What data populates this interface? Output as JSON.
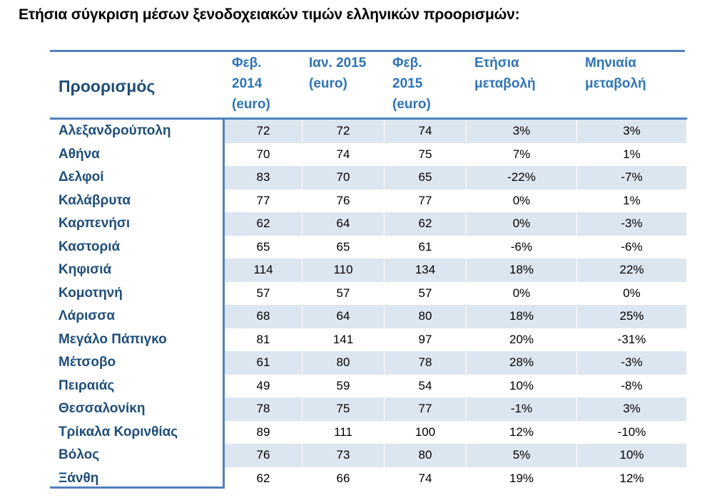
{
  "title": "Ετήσια σύγκριση μέσων ξενοδοχειακών τιμών ελληνικών προορισμών:",
  "table": {
    "header": {
      "destination": "Προορισμός",
      "feb2014": [
        "Φεβ.",
        "2014",
        "(euro)"
      ],
      "jan2015": [
        "Ιαν. 2015",
        "(euro)"
      ],
      "feb2015": [
        "Φεβ.",
        "2015",
        "(euro)"
      ],
      "annual": [
        "Ετήσια",
        "μεταβολή"
      ],
      "monthly": [
        "Μηνιαία",
        "μεταβολή"
      ]
    },
    "rows": [
      {
        "name": "Αλεξανδρούπολη",
        "feb2014": "72",
        "jan2015": "72",
        "feb2015": "74",
        "annual": "3%",
        "monthly": "3%"
      },
      {
        "name": "Αθήνα",
        "feb2014": "70",
        "jan2015": "74",
        "feb2015": "75",
        "annual": "7%",
        "monthly": "1%"
      },
      {
        "name": "Δελφοί",
        "feb2014": "83",
        "jan2015": "70",
        "feb2015": "65",
        "annual": "-22%",
        "monthly": "-7%"
      },
      {
        "name": "Καλάβρυτα",
        "feb2014": "77",
        "jan2015": "76",
        "feb2015": "77",
        "annual": "0%",
        "monthly": "1%"
      },
      {
        "name": "Καρπενήσι",
        "feb2014": "62",
        "jan2015": "64",
        "feb2015": "62",
        "annual": "0%",
        "monthly": "-3%"
      },
      {
        "name": "Καστοριά",
        "feb2014": "65",
        "jan2015": "65",
        "feb2015": "61",
        "annual": "-6%",
        "monthly": "-6%"
      },
      {
        "name": "Κηφισιά",
        "feb2014": "114",
        "jan2015": "110",
        "feb2015": "134",
        "annual": "18%",
        "monthly": "22%"
      },
      {
        "name": "Κομοτηνή",
        "feb2014": "57",
        "jan2015": "57",
        "feb2015": "57",
        "annual": "0%",
        "monthly": "0%"
      },
      {
        "name": "Λάρισσα",
        "feb2014": "68",
        "jan2015": "64",
        "feb2015": "80",
        "annual": "18%",
        "monthly": "25%"
      },
      {
        "name": "Μεγάλο Πάπιγκο",
        "feb2014": "81",
        "jan2015": "141",
        "feb2015": "97",
        "annual": "20%",
        "monthly": "-31%"
      },
      {
        "name": "Μέτσοβο",
        "feb2014": "61",
        "jan2015": "80",
        "feb2015": "78",
        "annual": "28%",
        "monthly": "-3%"
      },
      {
        "name": "Πειραιάς",
        "feb2014": "49",
        "jan2015": "59",
        "feb2015": "54",
        "annual": "10%",
        "monthly": "-8%"
      },
      {
        "name": "Θεσσαλονίκη",
        "feb2014": "78",
        "jan2015": "75",
        "feb2015": "77",
        "annual": "-1%",
        "monthly": "3%"
      },
      {
        "name": "Τρίκαλα Κορινθίας",
        "feb2014": "89",
        "jan2015": "111",
        "feb2015": "100",
        "annual": "12%",
        "monthly": "-10%"
      },
      {
        "name": "Βόλος",
        "feb2014": "76",
        "jan2015": "73",
        "feb2015": "80",
        "annual": "5%",
        "monthly": "10%"
      },
      {
        "name": "Ξάνθη",
        "feb2014": "62",
        "jan2015": "66",
        "feb2015": "74",
        "annual": "19%",
        "monthly": "12%"
      }
    ]
  },
  "colors": {
    "border": "#4f81bd",
    "header_text": "#2e74b5",
    "destination_text": "#1f4e79",
    "shaded_cell": "#dce6f1"
  }
}
